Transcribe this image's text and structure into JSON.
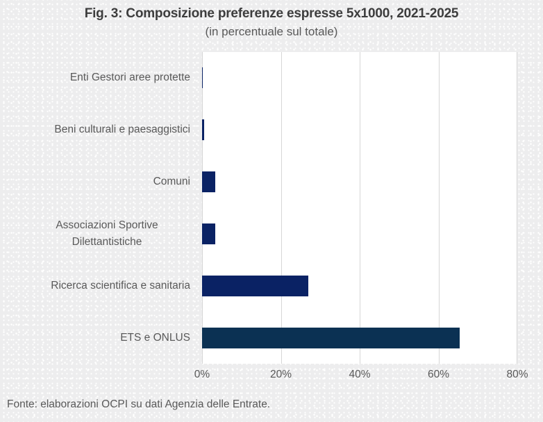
{
  "chart_data": {
    "type": "bar",
    "orientation": "horizontal",
    "title": "Fig. 3: Composizione preferenze espresse 5x1000, 2021-2025",
    "subtitle": "(in percentuale sul totale)",
    "categories": [
      "Enti Gestori aree protette",
      "Beni culturali e paesaggistici",
      "Comuni",
      "Associazioni Sportive Dilettantistiche",
      "Ricerca scientifica e sanitaria",
      "ETS e ONLUS"
    ],
    "values": [
      0.1,
      0.5,
      3.4,
      3.4,
      27,
      65.4
    ],
    "bar_colors": [
      "#0a2264",
      "#0a2264",
      "#0a2264",
      "#0a2264",
      "#0a2264",
      "#0b3153"
    ],
    "xlabel": "",
    "ylabel": "",
    "xlim": [
      0,
      80
    ],
    "x_tick_values": [
      0,
      20,
      40,
      60,
      80
    ],
    "x_ticks": [
      "0%",
      "20%",
      "40%",
      "60%",
      "80%"
    ],
    "grid": true,
    "legend": "none",
    "source": "Fonte: elaborazioni OCPI su dati Agenzia delle Entrate."
  },
  "colors": {
    "background": "#ededee",
    "plot_background": "#ffffff",
    "gridline": "#d6d6d6",
    "title_text": "#3d3d3d",
    "label_text": "#595959",
    "bar_default": "#0a2264",
    "bar_highlight": "#0b3153"
  }
}
